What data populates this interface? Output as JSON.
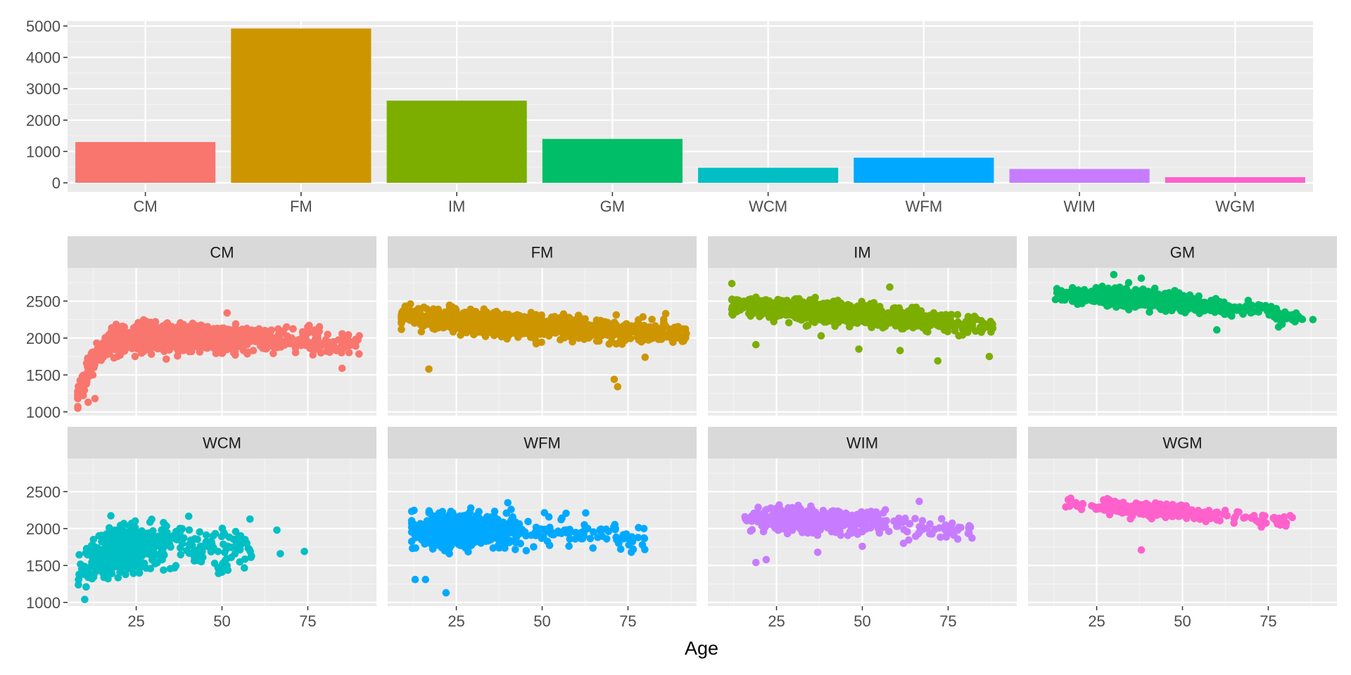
{
  "colors": {
    "panel_bg": "#EBEBEB",
    "grid_major": "#FFFFFF",
    "grid_minor": "#F3F3F3",
    "strip_bg": "#D9D9D9",
    "tick_text": "#4D4D4D"
  },
  "chart_data": [
    {
      "type": "bar",
      "title": "",
      "xlabel": "",
      "ylabel": "",
      "categories": [
        "CM",
        "FM",
        "IM",
        "GM",
        "WCM",
        "WFM",
        "WIM",
        "WGM"
      ],
      "values": [
        1300,
        4920,
        2620,
        1400,
        480,
        800,
        440,
        180
      ],
      "colors": [
        "#F8766D",
        "#CD9600",
        "#7CAE00",
        "#00BE67",
        "#00BFC4",
        "#00A9FF",
        "#C77CFF",
        "#FF61CC"
      ],
      "ylim": [
        0,
        5000
      ],
      "yticks": [
        0,
        1000,
        2000,
        3000,
        4000,
        5000
      ],
      "grid": true,
      "legend": "none"
    },
    {
      "type": "scatter",
      "layout": "facet_wrap 2 rows x 4 columns, shared axes",
      "xlabel": "Age",
      "ylabel": "",
      "xlim": [
        5,
        95
      ],
      "ylim": [
        950,
        2950
      ],
      "xticks": [
        25,
        50,
        75
      ],
      "yticks": [
        1000,
        1500,
        2000,
        2500
      ],
      "grid": true,
      "legend": "none",
      "panels": [
        {
          "strip": "CM",
          "color": "#F8766D",
          "n": 1100,
          "age_range": [
            8,
            90
          ],
          "age_peak": 24,
          "age_spread": 18,
          "rating_profile": [
            [
              8,
              1230
            ],
            [
              12,
              1700
            ],
            [
              18,
              1960
            ],
            [
              30,
              2010
            ],
            [
              50,
              2010
            ],
            [
              70,
              1960
            ],
            [
              90,
              1900
            ]
          ],
          "rating_spread": 110,
          "outliers": [
            [
              11,
              1130
            ],
            [
              13,
              1180
            ],
            [
              9,
              1250
            ],
            [
              85,
              1590
            ],
            [
              90,
              2030
            ],
            [
              82,
              1860
            ],
            [
              55,
              2100
            ],
            [
              75,
              2150
            ]
          ]
        },
        {
          "strip": "FM",
          "color": "#CD9600",
          "n": 1400,
          "age_range": [
            9,
            92
          ],
          "age_peak": 30,
          "age_spread": 20,
          "rating_profile": [
            [
              9,
              2300
            ],
            [
              20,
              2240
            ],
            [
              40,
              2180
            ],
            [
              60,
              2130
            ],
            [
              80,
              2080
            ],
            [
              92,
              2050
            ]
          ],
          "rating_spread": 85,
          "outliers": [
            [
              72,
              1340
            ],
            [
              71,
              1440
            ],
            [
              17,
              1580
            ],
            [
              88,
              1960
            ],
            [
              92,
              2060
            ],
            [
              86,
              2330
            ],
            [
              80,
              1740
            ]
          ]
        },
        {
          "strip": "IM",
          "color": "#7CAE00",
          "n": 1100,
          "age_range": [
            12,
            88
          ],
          "age_peak": 32,
          "age_spread": 18,
          "rating_profile": [
            [
              12,
              2450
            ],
            [
              30,
              2380
            ],
            [
              50,
              2320
            ],
            [
              70,
              2240
            ],
            [
              88,
              2150
            ]
          ],
          "rating_spread": 80,
          "outliers": [
            [
              58,
              2690
            ],
            [
              19,
              1910
            ],
            [
              49,
              1850
            ],
            [
              61,
              1830
            ],
            [
              72,
              1690
            ],
            [
              87,
              1750
            ],
            [
              38,
              2030
            ]
          ]
        },
        {
          "strip": "GM",
          "color": "#00BE67",
          "n": 900,
          "age_range": [
            13,
            85
          ],
          "age_peak": 30,
          "age_spread": 14,
          "rating_profile": [
            [
              13,
              2590
            ],
            [
              30,
              2570
            ],
            [
              50,
              2480
            ],
            [
              70,
              2380
            ],
            [
              85,
              2280
            ]
          ],
          "rating_spread": 65,
          "outliers": [
            [
              88,
              2250
            ],
            [
              78,
              2150
            ],
            [
              60,
              2110
            ],
            [
              30,
              2860
            ],
            [
              38,
              2810
            ]
          ]
        },
        {
          "strip": "WCM",
          "color": "#00BFC4",
          "n": 700,
          "age_range": [
            8,
            60
          ],
          "age_peak": 17,
          "age_spread": 7,
          "rating_profile": [
            [
              8,
              1330
            ],
            [
              13,
              1600
            ],
            [
              20,
              1720
            ],
            [
              30,
              1780
            ],
            [
              45,
              1750
            ],
            [
              60,
              1750
            ]
          ],
          "rating_spread": 180,
          "outliers": [
            [
              74,
              1690
            ],
            [
              66,
              1980
            ],
            [
              67,
              1660
            ],
            [
              50,
              1410
            ],
            [
              49,
              1470
            ],
            [
              54,
              1960
            ],
            [
              10,
              1040
            ]
          ]
        },
        {
          "strip": "WFM",
          "color": "#00A9FF",
          "n": 700,
          "age_range": [
            12,
            80
          ],
          "age_peak": 22,
          "age_spread": 10,
          "rating_profile": [
            [
              12,
              1950
            ],
            [
              25,
              1980
            ],
            [
              45,
              1980
            ],
            [
              65,
              1930
            ],
            [
              80,
              1880
            ]
          ],
          "rating_spread": 140,
          "outliers": [
            [
              22,
              1130
            ],
            [
              13,
              1310
            ],
            [
              16,
              1310
            ],
            [
              40,
              2350
            ],
            [
              76,
              1680
            ]
          ]
        },
        {
          "strip": "WIM",
          "color": "#C77CFF",
          "n": 550,
          "age_range": [
            14,
            82
          ],
          "age_peak": 30,
          "age_spread": 12,
          "rating_profile": [
            [
              14,
              2150
            ],
            [
              30,
              2120
            ],
            [
              50,
              2080
            ],
            [
              70,
              2030
            ],
            [
              82,
              1960
            ]
          ],
          "rating_spread": 95,
          "outliers": [
            [
              19,
              1540
            ],
            [
              22,
              1580
            ],
            [
              37,
              1680
            ],
            [
              50,
              1760
            ],
            [
              62,
              1800
            ]
          ]
        },
        {
          "strip": "WGM",
          "color": "#FF61CC",
          "n": 300,
          "age_range": [
            16,
            82
          ],
          "age_peak": 32,
          "age_spread": 11,
          "rating_profile": [
            [
              16,
              2330
            ],
            [
              30,
              2290
            ],
            [
              50,
              2230
            ],
            [
              65,
              2160
            ],
            [
              82,
              2110
            ]
          ],
          "rating_spread": 55,
          "outliers": [
            [
              38,
              1710
            ],
            [
              82,
              2150
            ],
            [
              73,
              2020
            ],
            [
              70,
              2150
            ]
          ]
        }
      ]
    }
  ]
}
